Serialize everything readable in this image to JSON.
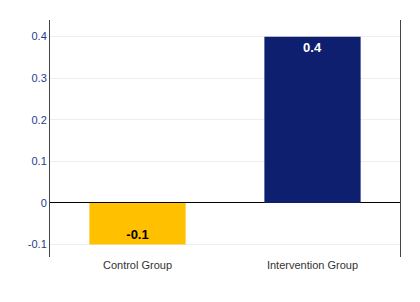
{
  "chart_data": {
    "type": "bar",
    "categories": [
      "Control Group",
      "Intervention Group"
    ],
    "values": [
      -0.1,
      0.4
    ],
    "colors": [
      "#FFC000",
      "#0D1F6E"
    ],
    "data_labels": true,
    "ylim": [
      -0.13,
      0.44
    ],
    "yticks": [
      -0.1,
      0,
      0.1,
      0.2,
      0.3,
      0.4
    ],
    "grid": true
  }
}
